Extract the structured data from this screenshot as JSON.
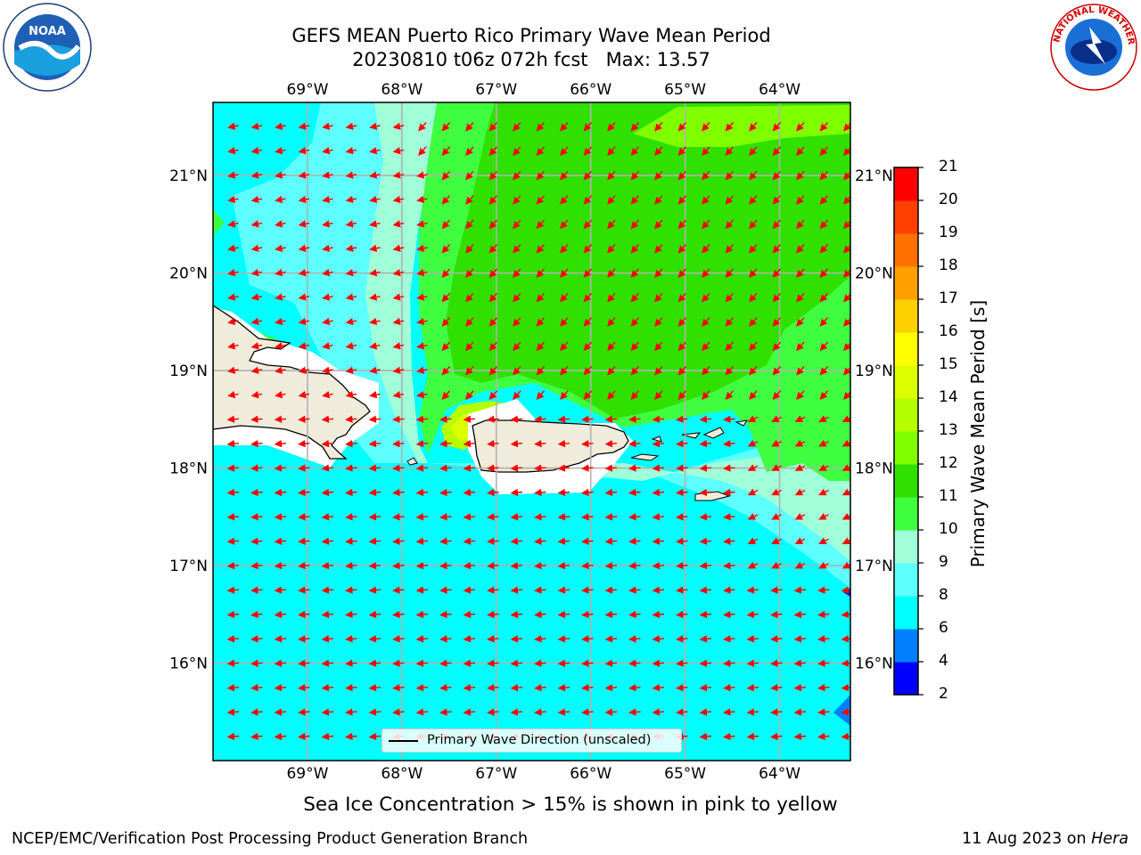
{
  "title": {
    "line1": "GEFS MEAN Puerto Rico Primary Wave Mean Period",
    "line2": "20230810 t06z 072h fcst   Max: 13.57"
  },
  "logos": {
    "left": {
      "text": "NOAA",
      "ring_text": "NATIONAL OCEANIC AND ATMOSPHERIC ADMINISTRATION · U.S. DEPARTMENT OF COMMERCE"
    },
    "right": {
      "ring_text": "NATIONAL WEATHER SERVICE"
    }
  },
  "map": {
    "lon_ticks": [
      "69°W",
      "68°W",
      "67°W",
      "66°W",
      "65°W",
      "64°W"
    ],
    "lat_ticks": [
      "21°N",
      "20°N",
      "19°N",
      "18°N",
      "17°N",
      "16°N"
    ],
    "lon_range": [
      -70.0,
      -63.25
    ],
    "lat_range": [
      15.0,
      21.75
    ],
    "legend_label": "Primary Wave Direction (unscaled)",
    "arrow_color": "#ff0000",
    "land_color": "#efecdc",
    "grid": true
  },
  "colorbar": {
    "title": "Primary Wave Mean Period [s]",
    "ticks": [
      "21",
      "20",
      "19",
      "18",
      "17",
      "16",
      "15",
      "14",
      "13",
      "12",
      "11",
      "10",
      "9",
      "8",
      "6",
      "4",
      "2"
    ],
    "levels": [
      2,
      4,
      6,
      8,
      9,
      10,
      11,
      12,
      13,
      14,
      15,
      16,
      17,
      18,
      19,
      20,
      21
    ],
    "colors": [
      "#0000ff",
      "#0080ff",
      "#00ffff",
      "#5effff",
      "#a0ffd8",
      "#40ff40",
      "#2fe000",
      "#80ff00",
      "#b4ff00",
      "#dcff00",
      "#ffff00",
      "#ffd000",
      "#ffa000",
      "#ff7000",
      "#ff4000",
      "#ff0000"
    ]
  },
  "note": "Sea Ice Concentration > 15% is shown in pink to yellow",
  "footer": {
    "left": "NCEP/EMC/Verification Post Processing Product Generation Branch",
    "right_prefix": "11 Aug 2023 on ",
    "right_host": "Hera"
  }
}
